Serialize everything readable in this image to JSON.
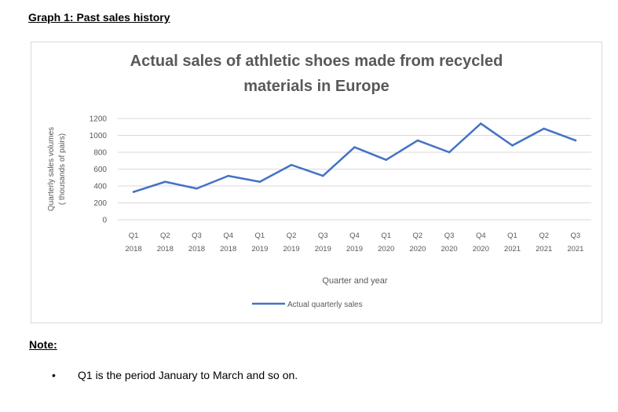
{
  "heading": "Graph 1: Past sales history",
  "note": {
    "title": "Note:",
    "bullet": "•",
    "items": [
      "Q1 is the period January to March and so on."
    ]
  },
  "colors": {
    "line": "#4472C4",
    "grid": "#d9d9d9",
    "text": "#595959"
  },
  "chart_data": {
    "type": "line",
    "title_lines": [
      "Actual sales of athletic shoes made from recycled",
      "materials in Europe"
    ],
    "ylabel_lines": [
      "Quarterly sales volumes",
      "( thousands of pairs)"
    ],
    "xlabel": "Quarter and year",
    "ylim": [
      0,
      1200
    ],
    "yticks": [
      0,
      200,
      400,
      600,
      800,
      1000,
      1200
    ],
    "grid": true,
    "legend_position": "bottom",
    "categories": [
      [
        "Q1",
        "2018"
      ],
      [
        "Q2",
        "2018"
      ],
      [
        "Q3",
        "2018"
      ],
      [
        "Q4",
        "2018"
      ],
      [
        "Q1",
        "2019"
      ],
      [
        "Q2",
        "2019"
      ],
      [
        "Q3",
        "2019"
      ],
      [
        "Q4",
        "2019"
      ],
      [
        "Q1",
        "2020"
      ],
      [
        "Q2",
        "2020"
      ],
      [
        "Q3",
        "2020"
      ],
      [
        "Q4",
        "2020"
      ],
      [
        "Q1",
        "2021"
      ],
      [
        "Q2",
        "2021"
      ],
      [
        "Q3",
        "2021"
      ]
    ],
    "series": [
      {
        "name": "Actual quarterly sales",
        "values": [
          330,
          450,
          370,
          520,
          450,
          650,
          520,
          860,
          710,
          940,
          800,
          1140,
          880,
          1080,
          940
        ]
      }
    ]
  }
}
